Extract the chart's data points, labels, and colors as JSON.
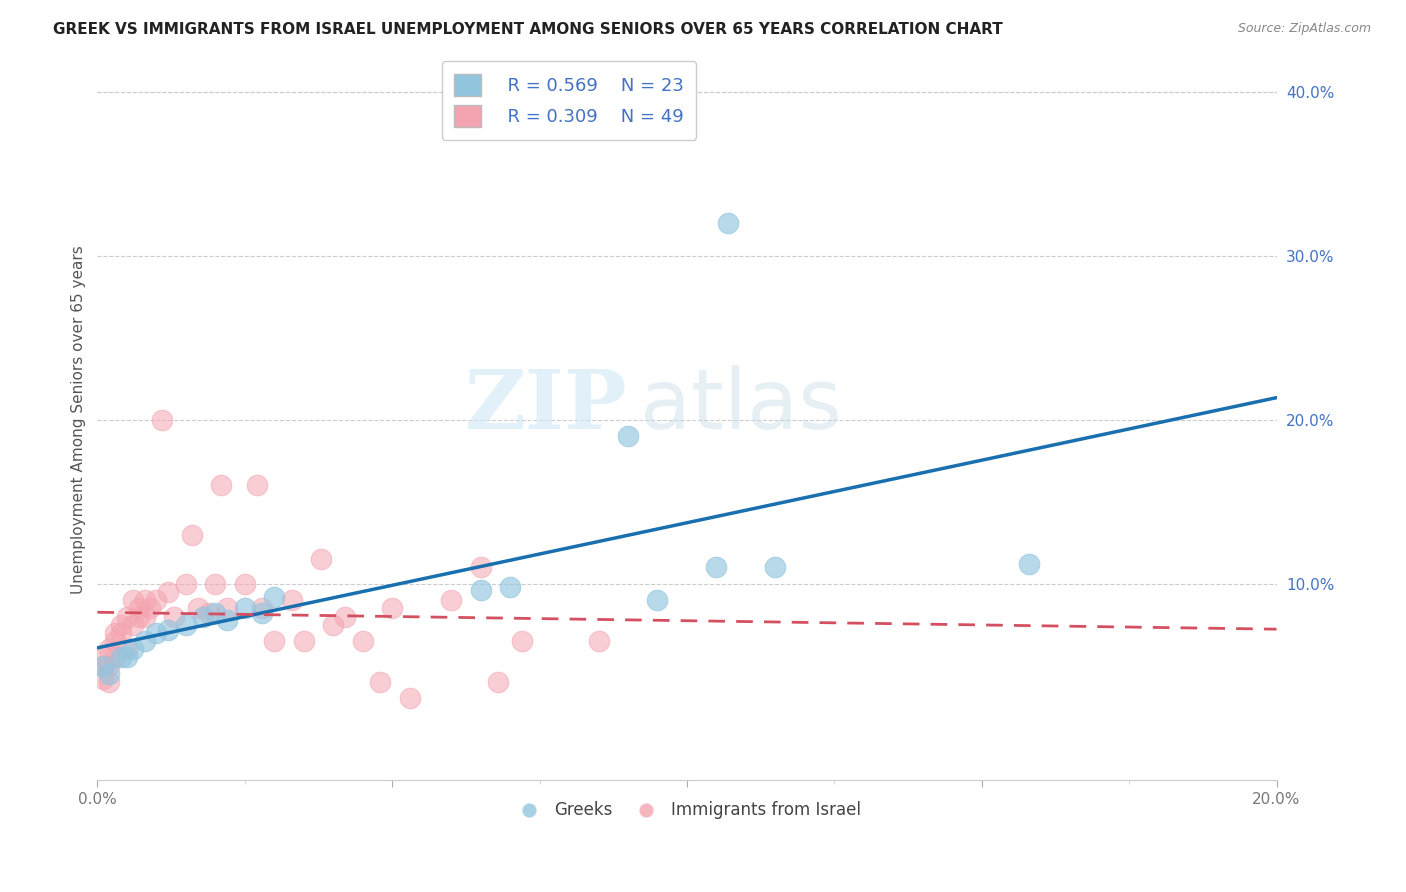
{
  "title": "GREEK VS IMMIGRANTS FROM ISRAEL UNEMPLOYMENT AMONG SENIORS OVER 65 YEARS CORRELATION CHART",
  "source": "Source: ZipAtlas.com",
  "ylabel": "Unemployment Among Seniors over 65 years",
  "legend_label_1": "Greeks",
  "legend_label_2": "Immigrants from Israel",
  "R1": 0.569,
  "N1": 23,
  "R2": 0.309,
  "N2": 49,
  "color_blue": "#92c5de",
  "color_pink": "#f4a4b0",
  "color_blue_line": "#1a6faf",
  "color_pink_line": "#d45060",
  "xlim": [
    0,
    0.2
  ],
  "ylim": [
    -0.02,
    0.42
  ],
  "ylim_data": [
    0,
    0.4
  ],
  "xticks": [
    0.0,
    0.025,
    0.05,
    0.075,
    0.1,
    0.125,
    0.15,
    0.175,
    0.2
  ],
  "xtick_labels": [
    "0.0%",
    "",
    "",
    "",
    "",
    "",
    "",
    "",
    "20.0%"
  ],
  "yticks_right": [
    0.1,
    0.2,
    0.3,
    0.4
  ],
  "watermark_zip": "ZIP",
  "watermark_atlas": "atlas",
  "blue_x": [
    0.001,
    0.002,
    0.004,
    0.005,
    0.006,
    0.008,
    0.01,
    0.012,
    0.015,
    0.018,
    0.02,
    0.022,
    0.025,
    0.028,
    0.03,
    0.065,
    0.07,
    0.09,
    0.095,
    0.105,
    0.107,
    0.115,
    0.158
  ],
  "blue_y": [
    0.05,
    0.045,
    0.055,
    0.055,
    0.06,
    0.065,
    0.07,
    0.072,
    0.075,
    0.08,
    0.082,
    0.078,
    0.085,
    0.082,
    0.092,
    0.096,
    0.098,
    0.19,
    0.09,
    0.11,
    0.32,
    0.11,
    0.112
  ],
  "pink_x": [
    0.001,
    0.001,
    0.001,
    0.002,
    0.002,
    0.002,
    0.003,
    0.003,
    0.003,
    0.004,
    0.004,
    0.005,
    0.005,
    0.006,
    0.006,
    0.007,
    0.007,
    0.008,
    0.008,
    0.009,
    0.01,
    0.011,
    0.012,
    0.013,
    0.015,
    0.016,
    0.017,
    0.019,
    0.02,
    0.021,
    0.022,
    0.025,
    0.027,
    0.028,
    0.03,
    0.033,
    0.035,
    0.038,
    0.04,
    0.042,
    0.045,
    0.048,
    0.05,
    0.053,
    0.06,
    0.065,
    0.068,
    0.072,
    0.085
  ],
  "pink_y": [
    0.05,
    0.056,
    0.042,
    0.06,
    0.05,
    0.04,
    0.065,
    0.07,
    0.055,
    0.07,
    0.075,
    0.08,
    0.06,
    0.09,
    0.075,
    0.08,
    0.085,
    0.09,
    0.08,
    0.085,
    0.09,
    0.2,
    0.095,
    0.08,
    0.1,
    0.13,
    0.085,
    0.082,
    0.1,
    0.16,
    0.085,
    0.1,
    0.16,
    0.085,
    0.065,
    0.09,
    0.065,
    0.115,
    0.075,
    0.08,
    0.065,
    0.04,
    0.085,
    0.03,
    0.09,
    0.11,
    0.04,
    0.065,
    0.065
  ]
}
